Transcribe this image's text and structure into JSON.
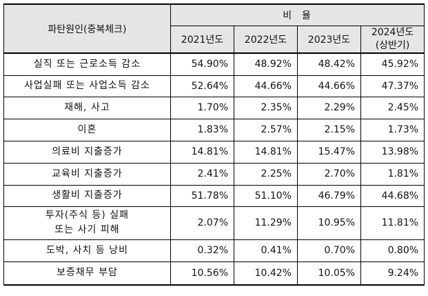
{
  "table": {
    "header": {
      "cause_label": "파탄원인(중복체크)",
      "ratio_label": "비  율",
      "years": [
        "2021년도",
        "2022년도",
        "2023년도"
      ],
      "last_year_line1": "2024년도",
      "last_year_line2": "(상반기)"
    },
    "rows": [
      {
        "cause": "실직 또는 근로소득 감소",
        "values": [
          "54.90%",
          "48.92%",
          "48.42%",
          "45.92%"
        ]
      },
      {
        "cause": "사업실패 또는 사업소득 감소",
        "values": [
          "52.64%",
          "44.66%",
          "44.66%",
          "47.37%"
        ]
      },
      {
        "cause": "재해, 사고",
        "values": [
          "1.70%",
          "2.35%",
          "2.29%",
          "2.45%"
        ]
      },
      {
        "cause": "이혼",
        "values": [
          "1.83%",
          "2.57%",
          "2.15%",
          "1.73%"
        ]
      },
      {
        "cause": "의료비 지출증가",
        "values": [
          "14.81%",
          "14.81%",
          "15.47%",
          "13.98%"
        ]
      },
      {
        "cause": "교육비 지출증가",
        "values": [
          "2.41%",
          "2.25%",
          "2.70%",
          "1.81%"
        ]
      },
      {
        "cause": "생활비 지출증가",
        "values": [
          "51.78%",
          "51.10%",
          "46.79%",
          "44.68%"
        ]
      },
      {
        "cause_line1": "투자(주식 등) 실패",
        "cause_line2": "또는 사기 피해",
        "values": [
          "2.07%",
          "11.29%",
          "10.95%",
          "11.81%"
        ]
      },
      {
        "cause": "도박, 사치 등 낭비",
        "values": [
          "0.32%",
          "0.41%",
          "0.70%",
          "0.80%"
        ]
      },
      {
        "cause": "보증채무 부담",
        "values": [
          "10.56%",
          "10.42%",
          "10.05%",
          "9.24%"
        ]
      }
    ]
  }
}
